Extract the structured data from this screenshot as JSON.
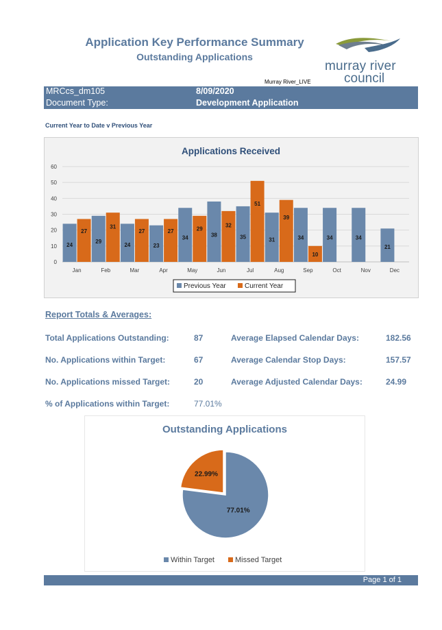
{
  "header": {
    "title": "Application Key Performance Summary",
    "subtitle": "Outstanding Applications",
    "environment": "Murray River_LIVE"
  },
  "logo": {
    "line1": "murray river",
    "line2": "council",
    "colors": {
      "blue": "#4a6c8c",
      "olive": "#8a9a3a",
      "grey": "#6e7e8e"
    }
  },
  "info_band": {
    "report_code": "MRCcs_dm105",
    "date": "8/09/2020",
    "doc_type_label": "Document Type:",
    "doc_type_value": "Development Application"
  },
  "period_label": "Current Year to Date v Previous Year",
  "report_totals": {
    "heading": "Report Totals & Averages:",
    "left": [
      {
        "label": "Total Applications Outstanding:",
        "value": "87"
      },
      {
        "label": "No. Applications within Target:",
        "value": "67"
      },
      {
        "label": "No. Applications missed Target:",
        "value": "20"
      },
      {
        "label": "% of Applications within Target:",
        "value": "77.01%"
      }
    ],
    "right": [
      {
        "label": "Average Elapsed Calendar Days:",
        "value": "182.56"
      },
      {
        "label": "Average Calendar Stop Days:",
        "value": "157.57"
      },
      {
        "label": "Average Adjusted Calendar Days:",
        "value": "24.99"
      }
    ]
  },
  "chart_data": [
    {
      "type": "bar",
      "title": "Applications Received",
      "categories": [
        "Jan",
        "Feb",
        "Mar",
        "Apr",
        "May",
        "Jun",
        "Jul",
        "Aug",
        "Sep",
        "Oct",
        "Nov",
        "Dec"
      ],
      "series": [
        {
          "name": "Previous Year",
          "color": "#6a88ab",
          "values": [
            24,
            29,
            24,
            23,
            34,
            38,
            35,
            31,
            34,
            34,
            34,
            21
          ]
        },
        {
          "name": "Current Year",
          "color": "#d86a1a",
          "values": [
            27,
            31,
            27,
            27,
            29,
            32,
            51,
            39,
            10,
            null,
            null,
            null
          ]
        }
      ],
      "yticks": [
        0,
        10,
        20,
        30,
        40,
        50,
        60
      ],
      "ylim": [
        0,
        60
      ],
      "grid": true,
      "legend": "bottom",
      "xlabel": "",
      "ylabel": ""
    },
    {
      "type": "pie",
      "title": "Outstanding Applications",
      "slices": [
        {
          "name": "Within Target",
          "value": 77.01,
          "label": "77.01%",
          "color": "#6a88ab"
        },
        {
          "name": "Missed Target",
          "value": 22.99,
          "label": "22.99%",
          "color": "#d86a1a"
        }
      ],
      "legend": "bottom"
    }
  ],
  "footer": {
    "page": "Page 1 of 1"
  }
}
